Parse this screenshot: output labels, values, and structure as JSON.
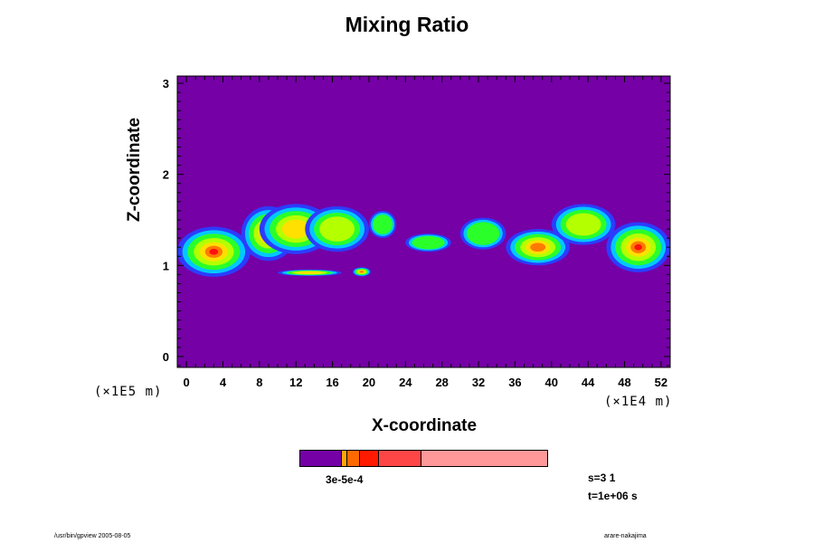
{
  "chart_data": {
    "type": "heatmap",
    "title": "Mixing Ratio",
    "xlabel": "X-coordinate",
    "ylabel": "Z-coordinate",
    "x_unit": "(×1E4 m)",
    "y_unit": "(×1E5 m)",
    "xlim": [
      -1,
      53
    ],
    "ylim": [
      -0.12,
      3.08
    ],
    "x_ticks": [
      "0",
      "4",
      "8",
      "12",
      "16",
      "20",
      "24",
      "28",
      "32",
      "36",
      "40",
      "44",
      "48",
      "52"
    ],
    "y_ticks": [
      "0",
      "1",
      "2",
      "3"
    ],
    "background_color": "#7400a6",
    "colorbar": {
      "labels": "3e-5e-4",
      "colors": [
        "#7400a6",
        "#ffa500",
        "#ff6a00",
        "#ff1a00",
        "#ff4646",
        "#ff9999"
      ],
      "fractions": [
        0.17,
        0.02,
        0.05,
        0.08,
        0.17,
        0.51
      ]
    },
    "clouds": [
      {
        "x0": -1,
        "x1": 7,
        "zc": 1.15,
        "h": 0.55,
        "core": 0.9
      },
      {
        "x0": 6,
        "x1": 12,
        "zc": 1.35,
        "h": 0.6,
        "core": 0.6
      },
      {
        "x0": 8,
        "x1": 16,
        "zc": 1.4,
        "h": 0.55,
        "core": 0.4
      },
      {
        "x0": 13,
        "x1": 20,
        "zc": 1.4,
        "h": 0.5,
        "core": 0.2
      },
      {
        "x0": 20,
        "x1": 23,
        "zc": 1.45,
        "h": 0.3,
        "core": 0.0
      },
      {
        "x0": 24,
        "x1": 29,
        "zc": 1.25,
        "h": 0.2,
        "core": 0.0
      },
      {
        "x0": 30,
        "x1": 35,
        "zc": 1.35,
        "h": 0.35,
        "core": 0.0
      },
      {
        "x0": 35,
        "x1": 42,
        "zc": 1.2,
        "h": 0.4,
        "core": 0.5
      },
      {
        "x0": 40,
        "x1": 47,
        "zc": 1.45,
        "h": 0.45,
        "core": 0.2
      },
      {
        "x0": 46,
        "x1": 53,
        "zc": 1.2,
        "h": 0.55,
        "core": 0.9
      },
      {
        "x0": 10,
        "x1": 17,
        "zc": 0.92,
        "h": 0.07,
        "core": 0.3
      },
      {
        "x0": 18.2,
        "x1": 20.2,
        "zc": 0.93,
        "h": 0.1,
        "core": 0.6
      }
    ]
  },
  "colorbar_labels": "3e-5e-4",
  "stats": {
    "s": "s=3 1",
    "t": "t=1e+06 s"
  },
  "footer": {
    "left": "/usr/bin/gpview 2005-08-05",
    "right": "arare-nakajima"
  }
}
